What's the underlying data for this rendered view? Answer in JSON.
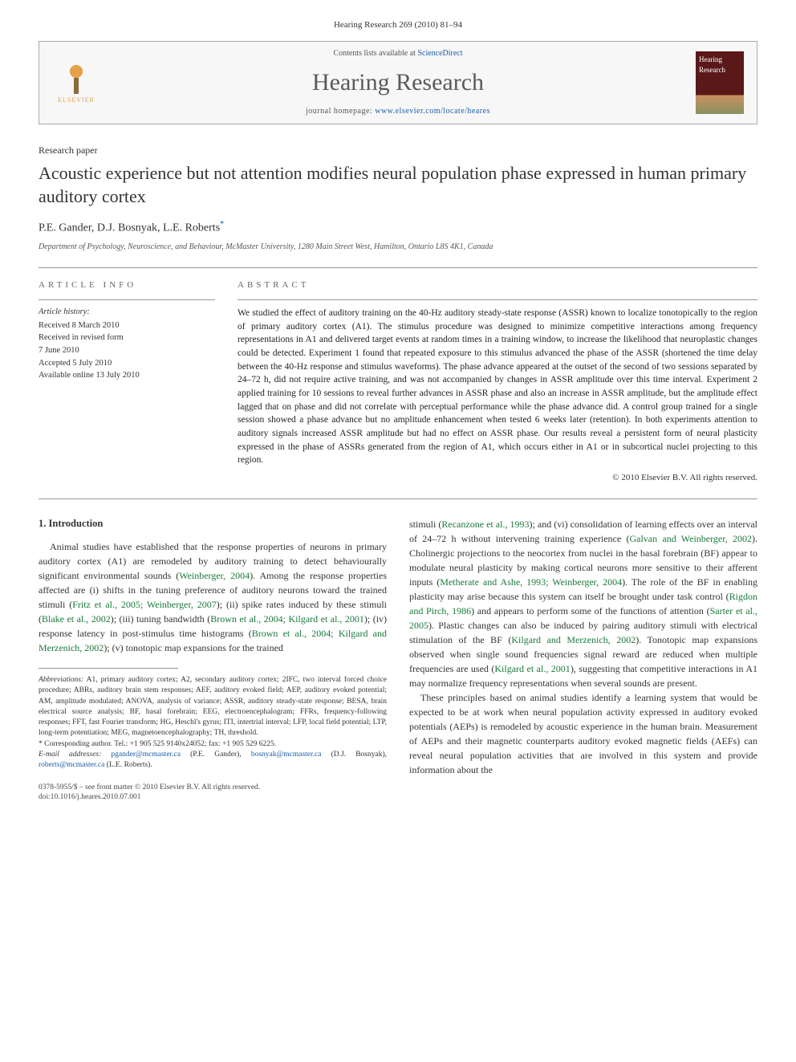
{
  "journal_header": "Hearing Research 269 (2010) 81–94",
  "header": {
    "contents_prefix": "Contents lists available at ",
    "contents_link": "ScienceDirect",
    "journal_name": "Hearing Research",
    "homepage_prefix": "journal homepage: ",
    "homepage_url": "www.elsevier.com/locate/heares",
    "elsevier_label": "ELSEVIER",
    "cover_label": "Hearing Research"
  },
  "paper_type": "Research paper",
  "title": "Acoustic experience but not attention modifies neural population phase expressed in human primary auditory cortex",
  "authors": "P.E. Gander, D.J. Bosnyak, L.E. Roberts",
  "author_sup": "*",
  "affiliation": "Department of Psychology, Neuroscience, and Behaviour, McMaster University, 1280 Main Street West, Hamilton, Ontario L8S 4K1, Canada",
  "article_info": {
    "heading": "ARTICLE INFO",
    "history_label": "Article history:",
    "received": "Received 8 March 2010",
    "revised1": "Received in revised form",
    "revised2": "7 June 2010",
    "accepted": "Accepted 5 July 2010",
    "online": "Available online 13 July 2010"
  },
  "abstract": {
    "heading": "ABSTRACT",
    "text": "We studied the effect of auditory training on the 40-Hz auditory steady-state response (ASSR) known to localize tonotopically to the region of primary auditory cortex (A1). The stimulus procedure was designed to minimize competitive interactions among frequency representations in A1 and delivered target events at random times in a training window, to increase the likelihood that neuroplastic changes could be detected. Experiment 1 found that repeated exposure to this stimulus advanced the phase of the ASSR (shortened the time delay between the 40-Hz response and stimulus waveforms). The phase advance appeared at the outset of the second of two sessions separated by 24–72 h, did not require active training, and was not accompanied by changes in ASSR amplitude over this time interval. Experiment 2 applied training for 10 sessions to reveal further advances in ASSR phase and also an increase in ASSR amplitude, but the amplitude effect lagged that on phase and did not correlate with perceptual performance while the phase advance did. A control group trained for a single session showed a phase advance but no amplitude enhancement when tested 6 weeks later (retention). In both experiments attention to auditory signals increased ASSR amplitude but had no effect on ASSR phase. Our results reveal a persistent form of neural plasticity expressed in the phase of ASSRs generated from the region of A1, which occurs either in A1 or in subcortical nuclei projecting to this region.",
    "copyright": "© 2010 Elsevier B.V. All rights reserved."
  },
  "intro": {
    "heading": "1. Introduction",
    "para1_a": "Animal studies have established that the response properties of neurons in primary auditory cortex (A1) are remodeled by auditory training to detect behaviourally significant environmental sounds (",
    "ref1": "Weinberger, 2004",
    "para1_b": "). Among the response properties affected are (i) shifts in the tuning preference of auditory neurons toward the trained stimuli (",
    "ref2": "Fritz et al., 2005; Weinberger, 2007",
    "para1_c": "); (ii) spike rates induced by these stimuli (",
    "ref3": "Blake et al., 2002",
    "para1_d": "); (iii) tuning bandwidth (",
    "ref4": "Brown et al., 2004; Kilgard et al., 2001",
    "para1_e": "); (iv) response latency in post-stimulus time histograms (",
    "ref5": "Brown et al., 2004; Kilgard and Merzenich, 2002",
    "para1_f": "); (v) tonotopic map expansions for the trained",
    "para2_a": "stimuli (",
    "ref6": "Recanzone et al., 1993",
    "para2_b": "); and (vi) consolidation of learning effects over an interval of 24–72 h without intervening training experience (",
    "ref7": "Galvan and Weinberger, 2002",
    "para2_c": "). Cholinergic projections to the neocortex from nuclei in the basal forebrain (BF) appear to modulate neural plasticity by making cortical neurons more sensitive to their afferent inputs (",
    "ref8": "Metherate and Ashe, 1993; Weinberger, 2004",
    "para2_d": "). The role of the BF in enabling plasticity may arise because this system can itself be brought under task control (",
    "ref9": "Rigdon and Pirch, 1986",
    "para2_e": ") and appears to perform some of the functions of attention (",
    "ref10": "Sarter et al., 2005",
    "para2_f": "). Plastic changes can also be induced by pairing auditory stimuli with electrical stimulation of the BF (",
    "ref11": "Kilgard and Merzenich, 2002",
    "para2_g": "). Tonotopic map expansions observed when single sound frequencies signal reward are reduced when multiple frequencies are used (",
    "ref12": "Kilgard et al., 2001",
    "para2_h": "), suggesting that competitive interactions in A1 may normalize frequency representations when several sounds are present.",
    "para3": "These principles based on animal studies identify a learning system that would be expected to be at work when neural population activity expressed in auditory evoked potentials (AEPs) is remodeled by acoustic experience in the human brain. Measurement of AEPs and their magnetic counterparts auditory evoked magnetic fields (AEFs) can reveal neural population activities that are involved in this system and provide information about the"
  },
  "abbreviations": {
    "label": "Abbreviations:",
    "text": " A1, primary auditory cortex; A2, secondary auditory cortex; 2IFC, two interval forced choice procedure; ABRs, auditory brain stem responses; AEF, auditory evoked field; AEP, auditory evoked potential; AM, amplitude modulated; ANOVA, analysis of variance; ASSR, auditory steady-state response; BESA, brain electrical source analysis; BF, basal forebrain; EEG, electroencephalogram; FFRs, frequency-following responses; FFT, fast Fourier transform; HG, Heschl's gyrus; ITI, intertrial interval; LFP, local field potential; LTP, long-term potentiation; MEG, magnetoencephalography; TH, threshold."
  },
  "corresponding": {
    "label": "* Corresponding author. ",
    "text": "Tel.: +1 905 525 9140x24052; fax: +1 905 529 6225.",
    "email_label": "E-mail addresses: ",
    "email1": "pgander@mcmaster.ca",
    "email1_who": " (P.E. Gander), ",
    "email2": "bosnyak@mcmaster.ca",
    "email2_who": " (D.J. Bosnyak), ",
    "email3": "roberts@mcmaster.ca",
    "email3_who": " (L.E. Roberts)."
  },
  "footer": {
    "line1": "0378-5955/$ – see front matter © 2010 Elsevier B.V. All rights reserved.",
    "line2": "doi:10.1016/j.heares.2010.07.001"
  },
  "colors": {
    "link": "#1a5da8",
    "ref": "#1a7a3a",
    "text": "#333333"
  }
}
